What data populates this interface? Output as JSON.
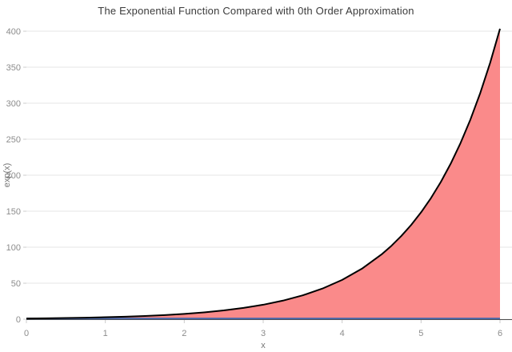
{
  "title": "The Exponential Function Compared with 0th Order Approximation",
  "chart_data": {
    "type": "area",
    "title": "The Exponential Function Compared with 0th Order Approximation",
    "xlabel": "x",
    "ylabel": "exp(x)",
    "xlim": [
      0,
      6
    ],
    "ylim": [
      0,
      400
    ],
    "x_ticks": [
      0,
      1,
      2,
      3,
      4,
      5,
      6
    ],
    "y_ticks": [
      0,
      50,
      100,
      150,
      200,
      250,
      300,
      350,
      400
    ],
    "grid": "horizontal-only",
    "legend": "none",
    "series": [
      {
        "name": "exp(x)",
        "kind": "line-with-area-fill",
        "line_color": "#000000",
        "fill_color": "#fa8a8a",
        "fill_to_y": 1,
        "x": [
          0,
          0.25,
          0.5,
          0.75,
          1,
          1.25,
          1.5,
          1.75,
          2,
          2.25,
          2.5,
          2.75,
          3,
          3.25,
          3.5,
          3.75,
          4,
          4.25,
          4.5,
          4.625,
          4.75,
          4.875,
          5,
          5.125,
          5.25,
          5.375,
          5.5,
          5.625,
          5.75,
          5.875,
          6
        ],
        "y": [
          1,
          1.284,
          1.649,
          2.117,
          2.718,
          3.49,
          4.482,
          5.755,
          7.389,
          9.488,
          12.182,
          15.643,
          20.086,
          25.79,
          33.115,
          42.521,
          54.598,
          70.105,
          90.017,
          101.994,
          115.584,
          130.984,
          148.413,
          168.174,
          190.566,
          215.94,
          244.692,
          277.27,
          314.191,
          356.06,
          403.429
        ]
      },
      {
        "name": "0th order approximation",
        "kind": "line",
        "line_color": "#4a67a8",
        "x": [
          0,
          6
        ],
        "y": [
          1,
          1
        ]
      }
    ],
    "colors": {
      "background": "#ffffff",
      "gridline": "#e5e5e5",
      "axis_spine": "#4d4d4d",
      "tick_mark": "#cccccc",
      "tick_label": "#8c8c8c",
      "axis_label": "#757575",
      "title": "#3b3b3b",
      "exp_line": "#000000",
      "area_fill": "#fa8a8a",
      "approx_line": "#4a67a8"
    }
  }
}
